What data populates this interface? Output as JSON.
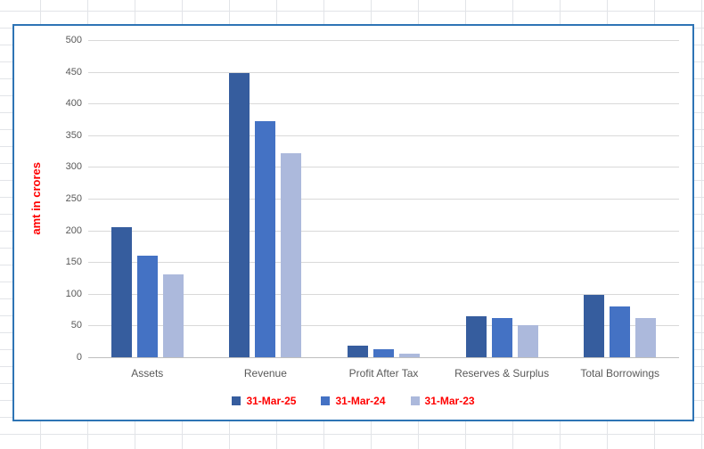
{
  "app": {
    "surface": "spreadsheet-with-embedded-chart",
    "grid_color": "#e2e4e8"
  },
  "chart": {
    "border_color": "#2e74b5",
    "background_color": "#ffffff",
    "gridline_color": "#d9d9d9",
    "axis_line_color": "#bfbfbf",
    "tick_label_color": "#595959",
    "category_label_color": "#595959",
    "y_axis_title_color": "#ff0000",
    "legend_text_color": "#ff0000"
  },
  "chart_data": {
    "type": "bar",
    "title": "",
    "xlabel": "",
    "ylabel": "amt in crores",
    "ylim": [
      0,
      500
    ],
    "yticks": [
      0,
      50,
      100,
      150,
      200,
      250,
      300,
      350,
      400,
      450,
      500
    ],
    "grid": true,
    "legend_position": "bottom",
    "categories": [
      "Assets",
      "Revenue",
      "Profit After Tax",
      "Reserves & Surplus",
      "Total Borrowings"
    ],
    "series": [
      {
        "name": "31-Mar-25",
        "color": "#365d9e",
        "values": [
          205,
          448,
          18,
          64,
          99
        ]
      },
      {
        "name": "31-Mar-24",
        "color": "#4472c4",
        "values": [
          160,
          372,
          13,
          62,
          80
        ]
      },
      {
        "name": "31-Mar-23",
        "color": "#acb9dc",
        "values": [
          130,
          321,
          6,
          50,
          62
        ]
      }
    ]
  }
}
